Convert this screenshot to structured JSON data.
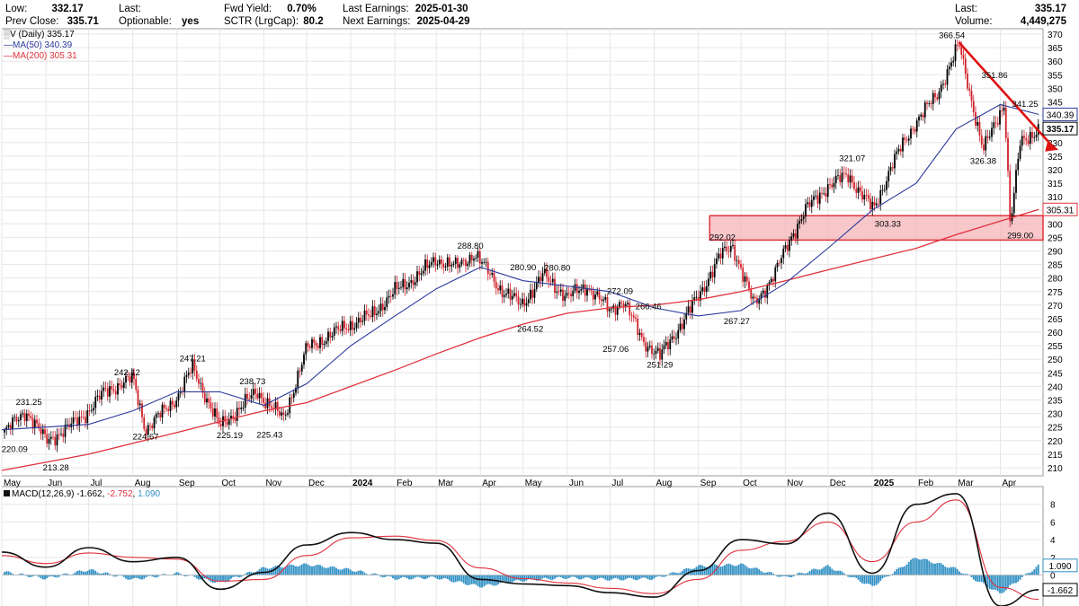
{
  "header": {
    "low_label": "Low:",
    "low_value": "332.17",
    "prev_close_label": "Prev Close:",
    "prev_close_value": "335.71",
    "last_label": "Last:",
    "optionable_label": "Optionable:",
    "optionable_value": "yes",
    "fwd_yield_label": "Fwd Yield:",
    "fwd_yield_value": "0.70%",
    "sctr_label": "SCTR (LrgCap):",
    "sctr_value": "80.2",
    "last_earnings_label": "Last Earnings:",
    "last_earnings_value": "2025-01-30",
    "next_earnings_label": "Next Earnings:",
    "next_earnings_value": "2025-04-29",
    "right_last_label": "Last:",
    "right_last_value": "335.17",
    "volume_label": "Volume:",
    "volume_value": "4,449,275"
  },
  "legend": {
    "symbol": "V (Daily) 335.17",
    "ma50": "MA(50) 340.39",
    "ma200": "MA(200) 305.31",
    "macd_name": "MACD(12,26,9)",
    "macd_v1": "-1.662",
    "macd_v2": "-2.752",
    "macd_v3": "1.090"
  },
  "colors": {
    "candle": "#000000",
    "down_candle": "#d0202a",
    "ma50": "#2b3a9c",
    "ma200": "#e0313c",
    "trend_arrow": "#e01010",
    "support_zone_fill": "#f4b4b8",
    "support_zone_border": "#e0313c",
    "macd_hist": "#2f8fc3",
    "macd_line": "#111111",
    "signal_line": "#e0313c",
    "grid": "#e6e6e6"
  },
  "chart_data": [
    {
      "type": "line",
      "title": "V (Daily) 335.17",
      "x_axis_labels": [
        "May",
        "Jun",
        "Jul",
        "Aug",
        "Sep",
        "Oct",
        "Nov",
        "Dec",
        "2024",
        "Feb",
        "Mar",
        "Apr",
        "May",
        "Jun",
        "Jul",
        "Aug",
        "Sep",
        "Oct",
        "Nov",
        "Dec",
        "2025",
        "Feb",
        "Mar",
        "Apr"
      ],
      "y_ticks": [
        210,
        215,
        220,
        225,
        230,
        235,
        240,
        245,
        250,
        255,
        260,
        265,
        270,
        275,
        280,
        285,
        290,
        295,
        300,
        305,
        310,
        315,
        320,
        325,
        330,
        335,
        340,
        345,
        350,
        355,
        360,
        365,
        370
      ],
      "ylim": [
        207,
        372
      ],
      "grid": true,
      "series": [
        {
          "name": "V (Daily)",
          "x": [
            "2023-05-01",
            "2023-05-18",
            "2023-06-01",
            "2023-06-15",
            "2023-07-01",
            "2023-07-12",
            "2023-08-01",
            "2023-08-10",
            "2023-09-01",
            "2023-09-12",
            "2023-10-01",
            "2023-10-27",
            "2023-11-15",
            "2023-12-01",
            "2023-12-28",
            "2024-01-15",
            "2024-02-01",
            "2024-02-20",
            "2024-03-01",
            "2024-03-15",
            "2024-03-28",
            "2024-04-15",
            "2024-04-30",
            "2024-05-15",
            "2024-06-01",
            "2024-06-15",
            "2024-07-01",
            "2024-07-10",
            "2024-07-24",
            "2024-08-05",
            "2024-08-20",
            "2024-09-03",
            "2024-09-16",
            "2024-09-25",
            "2024-10-10",
            "2024-10-25",
            "2024-11-05",
            "2024-11-15",
            "2024-12-01",
            "2024-12-15",
            "2025-01-02",
            "2025-01-15",
            "2025-02-01",
            "2025-02-15",
            "2025-03-03",
            "2025-03-20",
            "2025-04-04",
            "2025-04-08",
            "2025-04-15",
            "2025-04-28"
          ],
          "values": [
            222,
            231,
            220,
            224,
            231,
            238,
            243,
            224,
            236,
            247,
            225,
            238,
            228,
            254,
            262,
            266,
            275,
            282,
            287,
            284,
            289,
            276,
            270,
            281,
            273,
            277,
            268,
            272,
            257,
            251,
            263,
            275,
            288,
            292,
            270,
            282,
            295,
            305,
            314,
            318,
            305,
            322,
            338,
            347,
            366,
            327,
            345,
            299,
            330,
            335
          ]
        },
        {
          "name": "MA(50) 340.39",
          "x": [
            "2023-05-01",
            "2023-06-01",
            "2023-07-01",
            "2023-08-01",
            "2023-09-01",
            "2023-10-01",
            "2023-11-01",
            "2023-12-01",
            "2024-01-01",
            "2024-02-01",
            "2024-03-01",
            "2024-04-01",
            "2024-05-01",
            "2024-06-01",
            "2024-07-01",
            "2024-08-01",
            "2024-09-01",
            "2024-10-01",
            "2024-11-01",
            "2024-12-01",
            "2025-01-01",
            "2025-02-01",
            "2025-03-01",
            "2025-04-01",
            "2025-04-28"
          ],
          "values": [
            224,
            225,
            226,
            231,
            238,
            238,
            233,
            241,
            255,
            266,
            276,
            284,
            279,
            277,
            275,
            269,
            266,
            268,
            278,
            291,
            305,
            315,
            335,
            344,
            340.39
          ]
        },
        {
          "name": "MA(200) 305.31",
          "x": [
            "2023-05-01",
            "2023-06-01",
            "2023-07-01",
            "2023-08-01",
            "2023-09-01",
            "2023-10-01",
            "2023-11-01",
            "2023-12-01",
            "2024-01-01",
            "2024-02-01",
            "2024-03-01",
            "2024-04-01",
            "2024-05-01",
            "2024-06-01",
            "2024-07-01",
            "2024-08-01",
            "2024-09-01",
            "2024-10-01",
            "2024-11-01",
            "2024-12-01",
            "2025-01-01",
            "2025-02-01",
            "2025-03-01",
            "2025-04-01",
            "2025-04-28"
          ],
          "values": [
            209,
            212,
            215,
            219,
            223,
            227,
            231,
            234,
            240,
            246,
            252,
            258,
            263,
            267,
            269,
            270,
            272,
            275,
            279,
            283,
            287,
            291,
            296,
            301,
            305.31
          ]
        }
      ],
      "annotations": [
        "231.25",
        "220.09",
        "213.28",
        "242.12",
        "224.67",
        "247.21",
        "238.73",
        "225.19",
        "225.43",
        "288.80",
        "280.90",
        "280.80",
        "264.52",
        "272.09",
        "266.46",
        "257.06",
        "251.29",
        "292.02",
        "267.27",
        "321.07",
        "303.33",
        "366.54",
        "351.86",
        "341.25",
        "326.38",
        "299.00"
      ],
      "support_zone": [
        294,
        303
      ],
      "trendline": {
        "from": {
          "x": "2025-03-03",
          "y": 367
        },
        "to": {
          "x": "2025-04-28",
          "y": 332
        }
      },
      "price_tags": [
        "340.39",
        "335.17",
        "305.31"
      ]
    },
    {
      "type": "line",
      "title": "MACD(12,26,9) -1.662, -2.752, 1.090",
      "y_ticks": [
        0,
        2,
        4,
        6,
        8
      ],
      "ylim": [
        -3.5,
        10
      ],
      "x": [
        "2023-05-01",
        "2023-06-01",
        "2023-07-01",
        "2023-08-01",
        "2023-09-01",
        "2023-10-01",
        "2023-11-01",
        "2023-12-01",
        "2024-01-01",
        "2024-02-01",
        "2024-03-01",
        "2024-04-01",
        "2024-05-01",
        "2024-06-01",
        "2024-07-01",
        "2024-08-01",
        "2024-09-01",
        "2024-10-01",
        "2024-11-01",
        "2024-12-01",
        "2025-01-01",
        "2025-02-01",
        "2025-03-01",
        "2025-04-01",
        "2025-04-28"
      ],
      "series": [
        {
          "name": "MACD",
          "values": [
            2.6,
            0.9,
            3.1,
            1.5,
            2.0,
            -1.6,
            0.3,
            3.4,
            4.8,
            4.0,
            3.6,
            -0.5,
            -1.0,
            -1.2,
            -2.0,
            -2.5,
            0.5,
            4.0,
            3.5,
            7.0,
            0.2,
            8.0,
            9.2,
            -3.5,
            -1.662
          ]
        },
        {
          "name": "Signal",
          "values": [
            2.2,
            1.3,
            2.5,
            2.0,
            1.8,
            -0.7,
            -0.5,
            2.2,
            4.2,
            4.4,
            3.9,
            0.8,
            -0.4,
            -0.9,
            -1.5,
            -2.1,
            -0.5,
            2.8,
            3.8,
            6.0,
            1.5,
            6.0,
            8.5,
            -1.4,
            -2.752
          ]
        },
        {
          "name": "Histogram",
          "values": [
            0.4,
            -0.4,
            0.6,
            -0.5,
            0.2,
            -0.9,
            0.8,
            1.2,
            0.6,
            -0.4,
            -0.3,
            -1.3,
            -0.6,
            -0.3,
            -0.5,
            -0.4,
            1.0,
            1.2,
            -0.3,
            1.0,
            -1.3,
            2.0,
            0.7,
            -2.1,
            1.09
          ]
        }
      ],
      "price_tags": [
        "1.090",
        "-1.662"
      ]
    }
  ]
}
